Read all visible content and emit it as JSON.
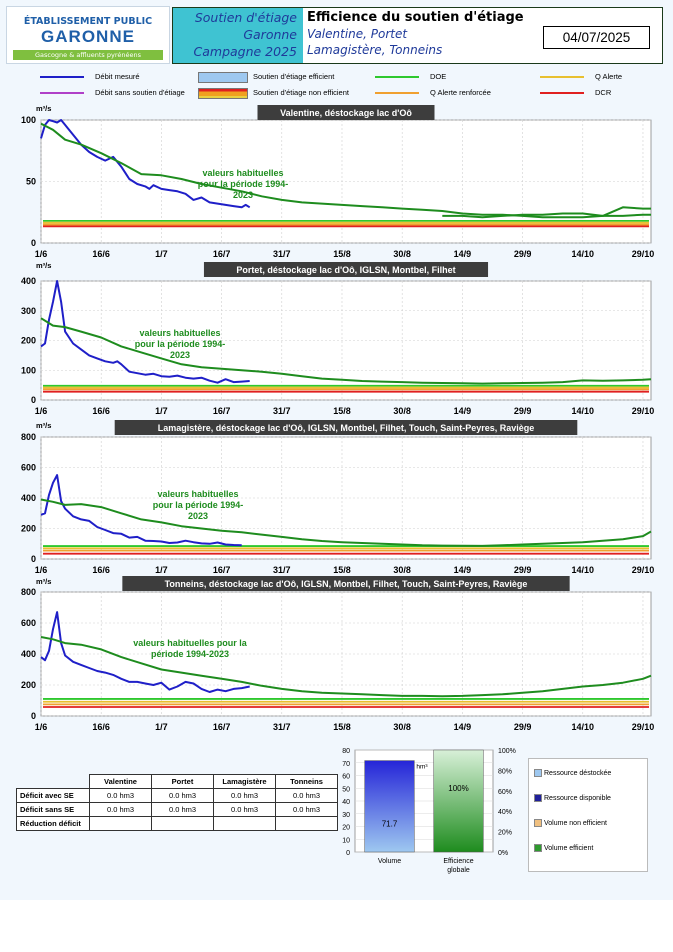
{
  "logo": {
    "line1": "ÉTABLISSEMENT PUBLIC",
    "line2": "GARONNE",
    "line3": "Gascogne & affluents pyrénéens"
  },
  "header": {
    "left": [
      "Soutien d'étiage",
      "Garonne",
      "Campagne 2025"
    ],
    "title": "Efficience du soutien d'étiage",
    "subtitle1": "Valentine, Portet",
    "subtitle2": "Lamagistère, Tonneins",
    "date": "04/07/2025"
  },
  "legend": [
    {
      "label": "Débit mesuré",
      "color": "#1f1fc8",
      "kind": "line"
    },
    {
      "label": "Débit sans soutien d'étiage",
      "color": "#b040c8",
      "kind": "line"
    },
    {
      "label": "Soutien d'étiage efficient",
      "color": "#9ec8f0",
      "kind": "box"
    },
    {
      "label": "Soutien d'étiage non efficient",
      "color": "#f0a020",
      "kind": "box"
    },
    {
      "label": "DOE",
      "color": "#2ec82e",
      "kind": "line"
    },
    {
      "label": "Q Alerte renforcée",
      "color": "#f0a030",
      "kind": "line"
    },
    {
      "label": "Q Alerte",
      "color": "#e8c030",
      "kind": "line"
    },
    {
      "label": "DCR",
      "color": "#e02020",
      "kind": "line"
    }
  ],
  "chart_data": [
    {
      "type": "line",
      "title": "Valentine, déstockage lac d'Oô",
      "ylabel": "m³/s",
      "ylim": [
        0,
        100
      ],
      "yticks": [
        0,
        50,
        100
      ],
      "xticks": [
        "1/6",
        "16/6",
        "1/7",
        "16/7",
        "31/7",
        "15/8",
        "30/8",
        "14/9",
        "29/9",
        "14/10",
        "29/10"
      ],
      "xlim": [
        0,
        152
      ],
      "annotation": "valeurs habituelles\npour la période 1994-\n2023",
      "thresholds": {
        "doe": 18,
        "alerte": 16.5,
        "alerte_renforcee": 15,
        "dcr": 13.5
      },
      "series": [
        {
          "name": "Débit mesuré",
          "color": "#1f1fc8",
          "x": [
            0,
            1,
            2,
            3,
            4,
            5,
            6,
            8,
            10,
            12,
            14,
            16,
            18,
            19,
            20,
            22,
            24,
            26,
            27,
            28,
            30,
            32,
            34,
            36,
            38,
            40,
            42,
            44,
            46,
            48,
            50,
            51,
            52
          ],
          "y": [
            85,
            96,
            101,
            99,
            98,
            100,
            96,
            88,
            80,
            74,
            70,
            67,
            70,
            66,
            62,
            52,
            48,
            46,
            44,
            47,
            44,
            43,
            42,
            40,
            35,
            37,
            33,
            32,
            31,
            30,
            29,
            31,
            29
          ]
        },
        {
          "name": "Débit historique",
          "color": "#1e8c1e",
          "x": [
            0,
            3,
            6,
            10,
            15,
            20,
            25,
            30,
            35,
            40,
            45,
            50,
            55,
            60,
            65,
            70,
            75,
            80,
            85,
            90,
            95,
            100,
            105,
            110,
            115,
            120,
            125,
            130,
            135,
            140,
            145,
            150,
            152
          ],
          "y": [
            97,
            92,
            84,
            80,
            73,
            65,
            56,
            55,
            52,
            48,
            45,
            42,
            38,
            35,
            33,
            32,
            31,
            30,
            29,
            28,
            27,
            26,
            24,
            23,
            23,
            22,
            21,
            21,
            21,
            22,
            22,
            23,
            23
          ]
        },
        {
          "name": "Débit historique (fin)",
          "color": "#1e8c1e",
          "x": [
            100,
            105,
            110,
            115,
            120,
            125,
            130,
            135,
            140,
            145,
            150,
            152
          ],
          "y": [
            22,
            22,
            21,
            22,
            23,
            23,
            24,
            24,
            22,
            29,
            28,
            28
          ]
        }
      ]
    },
    {
      "type": "line",
      "title": "Portet, déstockage lac d'Oô, IGLSN, Montbel, Filhet",
      "ylabel": "m³/s",
      "ylim": [
        0,
        400
      ],
      "yticks": [
        0,
        100,
        200,
        300,
        400
      ],
      "xticks": [
        "1/6",
        "16/6",
        "1/7",
        "16/7",
        "31/7",
        "15/8",
        "30/8",
        "14/9",
        "29/9",
        "14/10",
        "29/10"
      ],
      "xlim": [
        0,
        152
      ],
      "annotation": "valeurs habituelles\npour la période 1994-\n2023",
      "thresholds": {
        "doe": 48,
        "alerte": 42,
        "alerte_renforcee": 36,
        "dcr": 28
      },
      "series": [
        {
          "name": "Débit mesuré",
          "color": "#1f1fc8",
          "x": [
            0,
            1,
            2,
            3,
            4,
            5,
            6,
            8,
            10,
            12,
            14,
            16,
            18,
            19,
            20,
            22,
            24,
            26,
            28,
            30,
            32,
            34,
            36,
            38,
            40,
            42,
            44,
            46,
            48,
            50,
            52
          ],
          "y": [
            180,
            190,
            270,
            330,
            400,
            330,
            230,
            190,
            170,
            150,
            140,
            130,
            125,
            130,
            120,
            95,
            90,
            85,
            88,
            80,
            78,
            82,
            75,
            72,
            75,
            65,
            58,
            70,
            60,
            62,
            64
          ]
        },
        {
          "name": "Débit historique",
          "color": "#1e8c1e",
          "x": [
            0,
            3,
            6,
            10,
            15,
            20,
            25,
            30,
            35,
            40,
            45,
            50,
            55,
            60,
            65,
            70,
            75,
            80,
            85,
            90,
            95,
            100,
            105,
            110,
            115,
            120,
            125,
            130,
            135,
            140,
            145,
            150,
            152
          ],
          "y": [
            275,
            250,
            245,
            230,
            210,
            180,
            160,
            140,
            120,
            110,
            105,
            100,
            95,
            88,
            80,
            72,
            68,
            64,
            62,
            60,
            58,
            57,
            56,
            55,
            56,
            57,
            58,
            60,
            66,
            65,
            66,
            68,
            70
          ]
        }
      ]
    },
    {
      "type": "line",
      "title": "Lamagistère, déstockage lac d'Oô, IGLSN, Montbel, Filhet, Touch, Saint-Peyres, Raviège",
      "ylabel": "m³/s",
      "ylim": [
        0,
        800
      ],
      "yticks": [
        0,
        200,
        400,
        600,
        800
      ],
      "xticks": [
        "1/6",
        "16/6",
        "1/7",
        "16/7",
        "31/7",
        "15/8",
        "30/8",
        "14/9",
        "29/9",
        "14/10",
        "29/10"
      ],
      "xlim": [
        0,
        152
      ],
      "annotation": "valeurs habituelles\npour la période 1994-\n2023",
      "thresholds": {
        "doe": 85,
        "alerte": 70,
        "alerte_renforcee": 55,
        "dcr": 35
      },
      "series": [
        {
          "name": "Débit mesuré",
          "color": "#1f1fc8",
          "x": [
            0,
            1,
            2,
            3,
            4,
            5,
            6,
            8,
            10,
            12,
            14,
            16,
            18,
            20,
            22,
            24,
            26,
            28,
            30,
            32,
            34,
            36,
            38,
            40,
            42,
            44,
            46,
            48,
            50
          ],
          "y": [
            290,
            300,
            420,
            500,
            550,
            380,
            330,
            280,
            260,
            250,
            210,
            190,
            170,
            165,
            140,
            145,
            120,
            118,
            115,
            105,
            108,
            120,
            110,
            102,
            100,
            108,
            95,
            92,
            90
          ]
        },
        {
          "name": "Débit historique",
          "color": "#1e8c1e",
          "x": [
            0,
            3,
            6,
            10,
            15,
            20,
            25,
            30,
            35,
            40,
            45,
            50,
            55,
            60,
            65,
            70,
            75,
            80,
            85,
            90,
            95,
            100,
            105,
            110,
            115,
            120,
            125,
            130,
            135,
            140,
            145,
            150,
            152
          ],
          "y": [
            390,
            375,
            355,
            360,
            340,
            300,
            260,
            240,
            215,
            200,
            185,
            175,
            160,
            145,
            130,
            118,
            110,
            105,
            100,
            95,
            90,
            88,
            87,
            86,
            90,
            95,
            100,
            105,
            110,
            120,
            130,
            150,
            180
          ]
        }
      ]
    },
    {
      "type": "line",
      "title": "Tonneins, déstockage lac d'Oô, IGLSN, Montbel, Filhet, Touch, Saint-Peyres, Raviège",
      "ylabel": "m³/s",
      "ylim": [
        0,
        800
      ],
      "yticks": [
        0,
        200,
        400,
        600,
        800
      ],
      "xticks": [
        "1/6",
        "16/6",
        "1/7",
        "16/7",
        "31/7",
        "15/8",
        "30/8",
        "14/9",
        "29/9",
        "14/10",
        "29/10"
      ],
      "xlim": [
        0,
        152
      ],
      "annotation": "valeurs habituelles pour la\npériode 1994-2023",
      "thresholds": {
        "doe": 110,
        "alerte": 92,
        "alerte_renforcee": 75,
        "dcr": 58
      },
      "series": [
        {
          "name": "Débit mesuré",
          "color": "#1f1fc8",
          "x": [
            0,
            1,
            2,
            3,
            4,
            5,
            6,
            8,
            10,
            12,
            14,
            16,
            18,
            20,
            22,
            24,
            26,
            28,
            30,
            32,
            34,
            36,
            38,
            40,
            42,
            44,
            46,
            48,
            50,
            52
          ],
          "y": [
            380,
            360,
            420,
            560,
            670,
            470,
            390,
            350,
            330,
            310,
            290,
            280,
            265,
            240,
            220,
            220,
            210,
            200,
            215,
            170,
            190,
            220,
            210,
            175,
            155,
            170,
            160,
            175,
            180,
            190
          ]
        },
        {
          "name": "Débit historique",
          "color": "#1e8c1e",
          "x": [
            0,
            3,
            6,
            10,
            15,
            20,
            25,
            30,
            35,
            40,
            45,
            50,
            55,
            60,
            65,
            70,
            75,
            80,
            85,
            90,
            95,
            100,
            105,
            110,
            115,
            120,
            125,
            130,
            135,
            140,
            145,
            150,
            152
          ],
          "y": [
            510,
            495,
            470,
            460,
            430,
            380,
            340,
            300,
            280,
            260,
            240,
            220,
            195,
            175,
            160,
            150,
            145,
            140,
            135,
            130,
            130,
            128,
            130,
            135,
            140,
            150,
            160,
            175,
            190,
            200,
            215,
            240,
            260
          ]
        }
      ]
    },
    {
      "type": "bar",
      "categories": [
        "Volume",
        "Efficience globale"
      ],
      "bars": [
        {
          "category": "Volume",
          "value": 71.7,
          "label": "71.7",
          "unit": "hm³",
          "axis": "left",
          "color": "#1f1fc8"
        },
        {
          "category": "Efficience globale",
          "value": 100,
          "label": "100%",
          "axis": "right",
          "color": "#2e9a2e"
        }
      ],
      "ylim_left": [
        0,
        80
      ],
      "yticks_left": [
        "0",
        "10",
        "20",
        "30",
        "40",
        "50",
        "60",
        "70",
        "80"
      ],
      "ylim_right": [
        0,
        100
      ],
      "yticks_right": [
        "0%",
        "20%",
        "40%",
        "60%",
        "80%",
        "100%"
      ],
      "legend": [
        "Ressource déstockée",
        "Ressource disponible",
        "Volume non efficient",
        "Volume efficient"
      ],
      "legend_colors": [
        "#9ec8f0",
        "#1f1f9a",
        "#f0c080",
        "#2e9a2e"
      ]
    }
  ],
  "table": {
    "columns": [
      "Valentine",
      "Portet",
      "Lamagistère",
      "Tonneins"
    ],
    "rows": [
      {
        "label": "Déficit avec SE",
        "values": [
          "0.0 hm3",
          "0.0 hm3",
          "0.0 hm3",
          "0.0 hm3"
        ]
      },
      {
        "label": "Déficit sans SE",
        "values": [
          "0.0 hm3",
          "0.0 hm3",
          "0.0 hm3",
          "0.0 hm3"
        ]
      },
      {
        "label": "Réduction déficit",
        "values": [
          "",
          "",
          "",
          ""
        ]
      }
    ]
  }
}
